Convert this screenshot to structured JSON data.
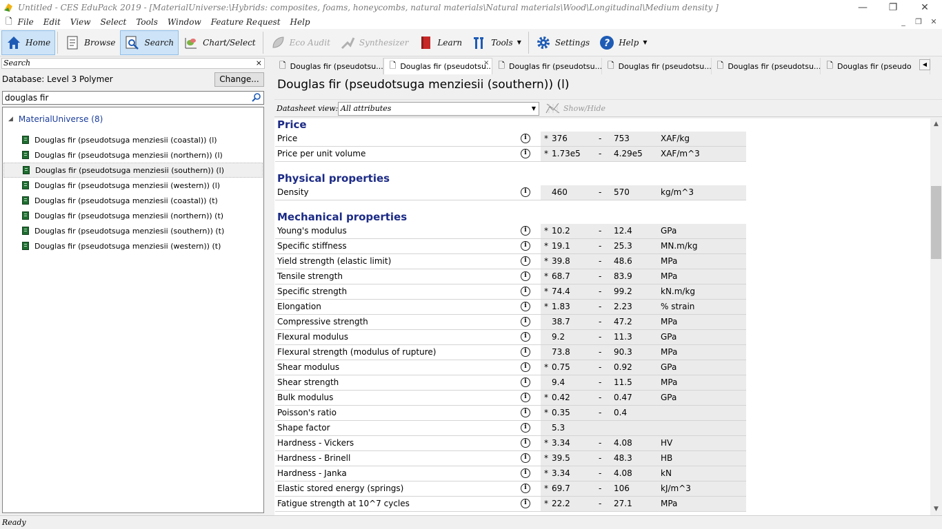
{
  "window": {
    "title": "Untitled - CES EduPack 2019 - [MaterialUniverse:\\Hybrids: composites, foams, honeycombs, natural materials\\Natural materials\\Wood\\Longitudinal\\Medium density ]",
    "minimize": "—",
    "restore": "❐",
    "close": "✕"
  },
  "menu": {
    "items": [
      "File",
      "Edit",
      "View",
      "Select",
      "Tools",
      "Window",
      "Feature Request",
      "Help"
    ],
    "mdi": [
      "_",
      "❐",
      "✕"
    ]
  },
  "toolbar": {
    "home": "Home",
    "browse": "Browse",
    "search": "Search",
    "chart_select": "Chart/Select",
    "eco_audit": "Eco Audit",
    "synthesizer": "Synthesizer",
    "learn": "Learn",
    "tools": "Tools",
    "settings": "Settings",
    "help": "Help"
  },
  "search_panel": {
    "header": "Search",
    "close": "×",
    "database_label": "Database: Level 3 Polymer",
    "change_button": "Change...",
    "query": "douglas fir",
    "root": "MaterialUniverse (8)",
    "results": [
      "Douglas fir (pseudotsuga menziesii (coastal)) (l)",
      "Douglas fir (pseudotsuga menziesii (northern)) (l)",
      "Douglas fir (pseudotsuga menziesii (southern)) (l)",
      "Douglas fir (pseudotsuga menziesii (western)) (l)",
      "Douglas fir (pseudotsuga menziesii (coastal)) (t)",
      "Douglas fir (pseudotsuga menziesii (northern)) (t)",
      "Douglas fir (pseudotsuga menziesii (southern)) (t)",
      "Douglas fir (pseudotsuga menziesii (western)) (t)"
    ],
    "selected_index": 2
  },
  "tabs": [
    {
      "label": "Douglas fir (pseudotsu..."
    },
    {
      "label": "Douglas fir (pseudotsu...",
      "close": "×"
    },
    {
      "label": "Douglas fir (pseudotsu..."
    },
    {
      "label": "Douglas fir (pseudotsu..."
    },
    {
      "label": "Douglas fir (pseudotsu..."
    },
    {
      "label": "Douglas fir (pseudo"
    }
  ],
  "active_tab_index": 1,
  "datasheet": {
    "title": "Douglas fir (pseudotsuga menziesii (southern)) (l)",
    "view_label": "Datasheet view:",
    "view_value": "All attributes",
    "show_hide": "Show/Hide",
    "sections": [
      {
        "title": "Price",
        "rows": [
          {
            "name": "Price",
            "star": "*",
            "low": "376",
            "high": "753",
            "unit": "XAF/kg"
          },
          {
            "name": "Price per unit volume",
            "star": "*",
            "low": "1.73e5",
            "high": "4.29e5",
            "unit": "XAF/m^3"
          }
        ]
      },
      {
        "title": "Physical properties",
        "rows": [
          {
            "name": "Density",
            "star": "",
            "low": "460",
            "high": "570",
            "unit": "kg/m^3"
          }
        ]
      },
      {
        "title": "Mechanical properties",
        "rows": [
          {
            "name": "Young's modulus",
            "star": "*",
            "low": "10.2",
            "high": "12.4",
            "unit": "GPa"
          },
          {
            "name": "Specific stiffness",
            "star": "*",
            "low": "19.1",
            "high": "25.3",
            "unit": "MN.m/kg"
          },
          {
            "name": "Yield strength (elastic limit)",
            "star": "*",
            "low": "39.8",
            "high": "48.6",
            "unit": "MPa"
          },
          {
            "name": "Tensile strength",
            "star": "*",
            "low": "68.7",
            "high": "83.9",
            "unit": "MPa"
          },
          {
            "name": "Specific strength",
            "star": "*",
            "low": "74.4",
            "high": "99.2",
            "unit": "kN.m/kg"
          },
          {
            "name": "Elongation",
            "star": "*",
            "low": "1.83",
            "high": "2.23",
            "unit": "% strain"
          },
          {
            "name": "Compressive strength",
            "star": "",
            "low": "38.7",
            "high": "47.2",
            "unit": "MPa"
          },
          {
            "name": "Flexural modulus",
            "star": "",
            "low": "9.2",
            "high": "11.3",
            "unit": "GPa"
          },
          {
            "name": "Flexural strength (modulus of rupture)",
            "star": "",
            "low": "73.8",
            "high": "90.3",
            "unit": "MPa"
          },
          {
            "name": "Shear modulus",
            "star": "*",
            "low": "0.75",
            "high": "0.92",
            "unit": "GPa"
          },
          {
            "name": "Shear strength",
            "star": "",
            "low": "9.4",
            "high": "11.5",
            "unit": "MPa"
          },
          {
            "name": "Bulk modulus",
            "star": "*",
            "low": "0.42",
            "high": "0.47",
            "unit": "GPa"
          },
          {
            "name": "Poisson's ratio",
            "star": "*",
            "low": "0.35",
            "high": "0.4",
            "unit": ""
          },
          {
            "name": "Shape factor",
            "star": "",
            "low": "5.3",
            "high": "",
            "unit": ""
          },
          {
            "name": "Hardness - Vickers",
            "star": "*",
            "low": "3.34",
            "high": "4.08",
            "unit": "HV"
          },
          {
            "name": "Hardness - Brinell",
            "star": "*",
            "low": "39.5",
            "high": "48.3",
            "unit": "HB"
          },
          {
            "name": "Hardness - Janka",
            "star": "*",
            "low": "3.34",
            "high": "4.08",
            "unit": "kN"
          },
          {
            "name": "Elastic stored energy (springs)",
            "star": "*",
            "low": "69.7",
            "high": "106",
            "unit": "kJ/m^3"
          },
          {
            "name": "Fatigue strength at 10^7 cycles",
            "star": "*",
            "low": "22.2",
            "high": "27.1",
            "unit": "MPa"
          }
        ]
      }
    ]
  },
  "status": "Ready",
  "colors": {
    "section_heading": "#1c2b86",
    "active_toolbar": "#cde3f7",
    "tree_root": "#1a3c9c",
    "book_icon": "#1f6e31"
  }
}
